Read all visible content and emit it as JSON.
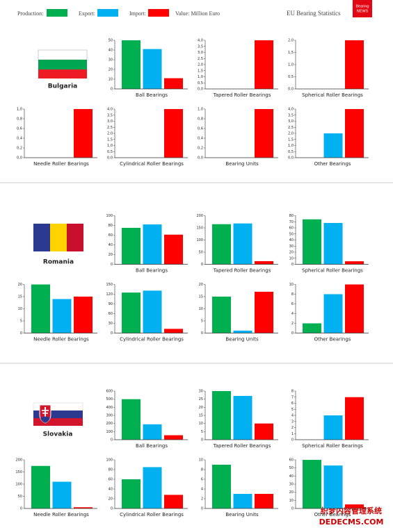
{
  "header": {
    "legend": [
      {
        "name": "Production:",
        "color": "#00b050"
      },
      {
        "name": "Export:",
        "color": "#00b0f0"
      },
      {
        "name": "Import:",
        "color": "#ff0000"
      }
    ],
    "note": "Value: Million Euro",
    "title": "EU Bearing Statistics",
    "logo": [
      "Bearing",
      "NEWS"
    ]
  },
  "countries": [
    {
      "name": "Bulgaria"
    },
    {
      "name": "Romania"
    },
    {
      "name": "Slovakia"
    }
  ],
  "watermark": [
    "织梦内容管理系统",
    "DEDECMS.COM"
  ],
  "chart_data": [
    {
      "type": "bar",
      "title": "Ball Bearings",
      "values": [
        50,
        41,
        11
      ],
      "ylim": [
        0,
        50
      ],
      "yticks": [
        0,
        10,
        20,
        30,
        40,
        50
      ]
    },
    {
      "type": "bar",
      "title": "Tapered Roller Bearings",
      "values": [
        0,
        0,
        4
      ],
      "ylim": [
        0,
        4
      ],
      "yticks": [
        {
          "value": 0,
          "label": "0,0"
        },
        {
          "value": 0.5,
          "label": "0,5"
        },
        {
          "value": 1,
          "label": "1,0"
        },
        {
          "value": 1.5,
          "label": "1,5"
        },
        {
          "value": 2,
          "label": "2,0"
        },
        {
          "value": 2.5,
          "label": "2,5"
        },
        {
          "value": 3,
          "label": "3,0"
        },
        {
          "value": 3.5,
          "label": "3,5"
        },
        {
          "value": 4,
          "label": "4,0"
        }
      ]
    },
    {
      "type": "bar",
      "title": "Spherical Roller Bearings",
      "values": [
        0,
        0,
        2
      ],
      "ylim": [
        0,
        2
      ],
      "yticks": [
        {
          "value": 0,
          "label": "0,0"
        },
        {
          "value": 0.5,
          "label": "0,5"
        },
        {
          "value": 1,
          "label": "1,0"
        },
        {
          "value": 1.5,
          "label": "1,5"
        },
        {
          "value": 2,
          "label": "2,0"
        }
      ]
    },
    {
      "type": "bar",
      "title": "Needle Roller Bearings",
      "values": [
        0,
        0,
        1
      ],
      "ylim": [
        0,
        1
      ],
      "yticks": [
        {
          "value": 0,
          "label": "0,0"
        },
        {
          "value": 0.2,
          "label": "0,2"
        },
        {
          "value": 0.4,
          "label": "0,4"
        },
        {
          "value": 0.6,
          "label": "0,6"
        },
        {
          "value": 0.8,
          "label": "0,8"
        },
        {
          "value": 1,
          "label": "1,0"
        }
      ]
    },
    {
      "type": "bar",
      "title": "Cylindrical Roller Bearings",
      "values": [
        0,
        0,
        4
      ],
      "ylim": [
        0,
        4
      ],
      "yticks": [
        {
          "value": 0,
          "label": "0,0"
        },
        {
          "value": 0.5,
          "label": "0,5"
        },
        {
          "value": 1,
          "label": "1,0"
        },
        {
          "value": 1.5,
          "label": "1,5"
        },
        {
          "value": 2,
          "label": "2,0"
        },
        {
          "value": 2.5,
          "label": "2,5"
        },
        {
          "value": 3,
          "label": "3,0"
        },
        {
          "value": 3.5,
          "label": "3,5"
        },
        {
          "value": 4,
          "label": "4,0"
        }
      ]
    },
    {
      "type": "bar",
      "title": "Bearing Units",
      "values": [
        0,
        0,
        1
      ],
      "ylim": [
        0,
        1
      ],
      "yticks": [
        {
          "value": 0,
          "label": "0,0"
        },
        {
          "value": 0.2,
          "label": "0,2"
        },
        {
          "value": 0.4,
          "label": "0,4"
        },
        {
          "value": 0.6,
          "label": "0,6"
        },
        {
          "value": 0.8,
          "label": "0,8"
        },
        {
          "value": 1,
          "label": "1,0"
        }
      ]
    },
    {
      "type": "bar",
      "title": "Other Bearings",
      "values": [
        0,
        2,
        4
      ],
      "ylim": [
        0,
        4
      ],
      "yticks": [
        {
          "value": 0,
          "label": "0,0"
        },
        {
          "value": 0.5,
          "label": "0,5"
        },
        {
          "value": 1,
          "label": "1,0"
        },
        {
          "value": 1.5,
          "label": "1,5"
        },
        {
          "value": 2,
          "label": "2,0"
        },
        {
          "value": 2.5,
          "label": "2,5"
        },
        {
          "value": 3,
          "label": "3,0"
        },
        {
          "value": 3.5,
          "label": "3,5"
        },
        {
          "value": 4,
          "label": "4,0"
        }
      ]
    },
    {
      "type": "bar",
      "title": "Ball Bearings",
      "values": [
        75,
        82,
        61
      ],
      "ylim": [
        0,
        100
      ],
      "yticks": [
        0,
        20,
        40,
        60,
        80,
        100
      ]
    },
    {
      "type": "bar",
      "title": "Tapered Roller Bearings",
      "values": [
        165,
        168,
        13
      ],
      "ylim": [
        0,
        200
      ],
      "yticks": [
        0,
        50,
        100,
        150,
        200
      ]
    },
    {
      "type": "bar",
      "title": "Spherical Roller Bearings",
      "values": [
        74,
        68,
        5
      ],
      "ylim": [
        0,
        80
      ],
      "yticks": [
        0,
        10,
        20,
        30,
        40,
        50,
        60,
        70,
        80
      ]
    },
    {
      "type": "bar",
      "title": "Needle Roller Bearings",
      "values": [
        20,
        14,
        15
      ],
      "ylim": [
        0,
        20
      ],
      "yticks": [
        0,
        5,
        10,
        15,
        20
      ]
    },
    {
      "type": "bar",
      "title": "Cylindrical Roller Bearings",
      "values": [
        125,
        131,
        13
      ],
      "ylim": [
        0,
        150
      ],
      "yticks": [
        0,
        30,
        60,
        90,
        120,
        150
      ]
    },
    {
      "type": "bar",
      "title": "Bearing Units",
      "values": [
        15,
        1,
        17
      ],
      "ylim": [
        0,
        20
      ],
      "yticks": [
        0,
        5,
        10,
        15,
        20
      ]
    },
    {
      "type": "bar",
      "title": "Other Bearings",
      "values": [
        2,
        8,
        10
      ],
      "ylim": [
        0,
        10
      ],
      "yticks": [
        0,
        2,
        4,
        6,
        8,
        10
      ]
    },
    {
      "type": "bar",
      "title": "Ball Bearings",
      "values": [
        500,
        190,
        55
      ],
      "ylim": [
        0,
        600
      ],
      "yticks": [
        0,
        100,
        200,
        300,
        400,
        500,
        600
      ]
    },
    {
      "type": "bar",
      "title": "Tapered Roller Bearings",
      "values": [
        30,
        27,
        10
      ],
      "ylim": [
        0,
        30
      ],
      "yticks": [
        0,
        5,
        10,
        15,
        20,
        25,
        30
      ]
    },
    {
      "type": "bar",
      "title": "Spherical Roller Bearings",
      "values": [
        0,
        4,
        7
      ],
      "ylim": [
        0,
        8
      ],
      "yticks": [
        0,
        1,
        2,
        3,
        4,
        5,
        6,
        7,
        8
      ]
    },
    {
      "type": "bar",
      "title": "Needle Roller Bearings",
      "values": [
        175,
        110,
        5
      ],
      "ylim": [
        0,
        200
      ],
      "yticks": [
        0,
        50,
        100,
        150,
        200
      ]
    },
    {
      "type": "bar",
      "title": "Cylindrical Roller Bearings",
      "values": [
        60,
        85,
        28
      ],
      "ylim": [
        0,
        100
      ],
      "yticks": [
        0,
        20,
        40,
        60,
        80,
        100
      ]
    },
    {
      "type": "bar",
      "title": "Bearing Units",
      "values": [
        9,
        3,
        3
      ],
      "ylim": [
        0,
        10
      ],
      "yticks": [
        0,
        2,
        4,
        6,
        8,
        10
      ]
    },
    {
      "type": "bar",
      "title": "Other Bearings",
      "values": [
        60,
        53,
        5
      ],
      "ylim": [
        0,
        60
      ],
      "yticks": [
        0,
        10,
        20,
        30,
        40,
        50,
        60
      ]
    }
  ]
}
